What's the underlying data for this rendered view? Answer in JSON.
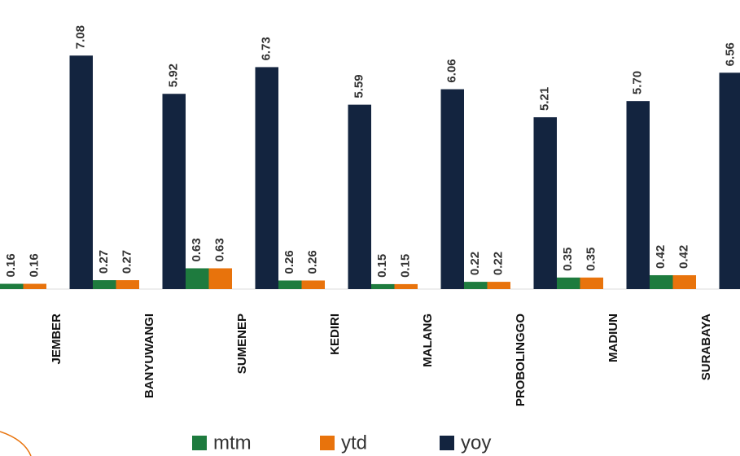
{
  "chart_data": {
    "type": "bar",
    "categories": [
      "JEMBER",
      "BANYUWANGI",
      "SUMENEP",
      "KEDIRI",
      "MALANG",
      "PROBOLINGGO",
      "MADIUN",
      "SURABAYA"
    ],
    "series": [
      {
        "name": "mtm",
        "color": "#1e7b3e",
        "values": [
          0.16,
          0.27,
          0.63,
          0.26,
          0.15,
          0.22,
          0.35,
          0.42
        ],
        "value_labels": [
          "0.16",
          "0.27",
          "0.63",
          "0.26",
          "0.15",
          "0.22",
          "0.35",
          "0.42"
        ]
      },
      {
        "name": "ytd",
        "color": "#e8730c",
        "values": [
          0.16,
          0.27,
          0.63,
          0.26,
          0.15,
          0.22,
          0.35,
          0.42
        ],
        "value_labels": [
          "0.16",
          "0.27",
          "0.63",
          "0.26",
          "0.15",
          "0.22",
          "0.35",
          "0.42"
        ]
      },
      {
        "name": "yoy",
        "color": "#13243f",
        "values": [
          7.08,
          5.92,
          6.73,
          5.59,
          6.06,
          5.21,
          5.7,
          6.56
        ],
        "value_labels": [
          "7.08",
          "5.92",
          "6.73",
          "5.59",
          "6.06",
          "5.21",
          "5.70",
          "6.56"
        ]
      }
    ],
    "ylim": [
      0,
      8
    ],
    "legend": "bottom"
  }
}
